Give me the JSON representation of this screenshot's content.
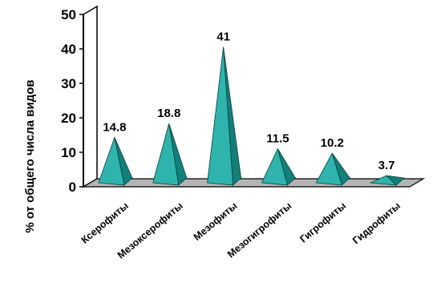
{
  "chart_data": {
    "type": "bar",
    "bar_shape": "pyramid",
    "categories": [
      "Ксерофиты",
      "Мезоксерофиты",
      "Мезофиты",
      "Мезогигрофиты",
      "Гигрофиты",
      "Гидрофиты"
    ],
    "values": [
      14.8,
      18.8,
      41,
      11.5,
      10.2,
      3.7
    ],
    "value_labels": [
      "14.8",
      "18.8",
      "41",
      "11.5",
      "10.2",
      "3.7"
    ],
    "ylabel": "% от общего числа видов",
    "ylim": [
      0,
      50
    ],
    "yticks": [
      "0",
      "10",
      "20",
      "30",
      "40",
      "50"
    ],
    "grid": false,
    "legend": "none",
    "colors": {
      "bar_front": "#2fb3ad",
      "bar_side": "#137f7a",
      "bar_edge": "#0a3f3c",
      "wall": "#ffffff",
      "floor": "#b4b4b4"
    }
  }
}
